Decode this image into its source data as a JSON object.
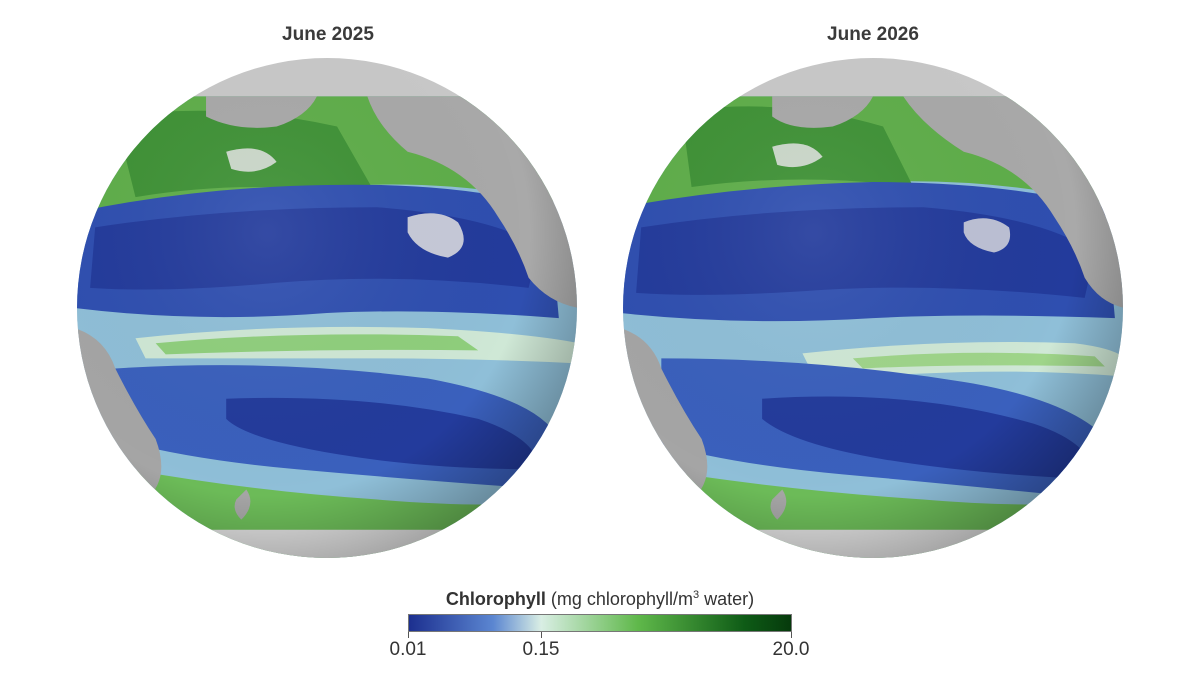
{
  "panels": [
    {
      "title": "June 2025"
    },
    {
      "title": "June 2026"
    }
  ],
  "legend": {
    "variable": "Chlorophyll",
    "units_prefix": "(mg chlorophyll/m",
    "units_superscript": "3",
    "units_suffix": " water)",
    "scale": "log",
    "min": 0.01,
    "mid": 0.15,
    "max": 20.0,
    "tick_labels": [
      "0.01",
      "0.15",
      "20.0"
    ],
    "colors": {
      "low": "#1c2f8f",
      "mid_blue": "#5b86d1",
      "pale": "#d9eee4",
      "green": "#5fb84a",
      "dark_green": "#0e5b16",
      "land": "#a8a8a8",
      "ice": "#e6e6e6"
    }
  }
}
